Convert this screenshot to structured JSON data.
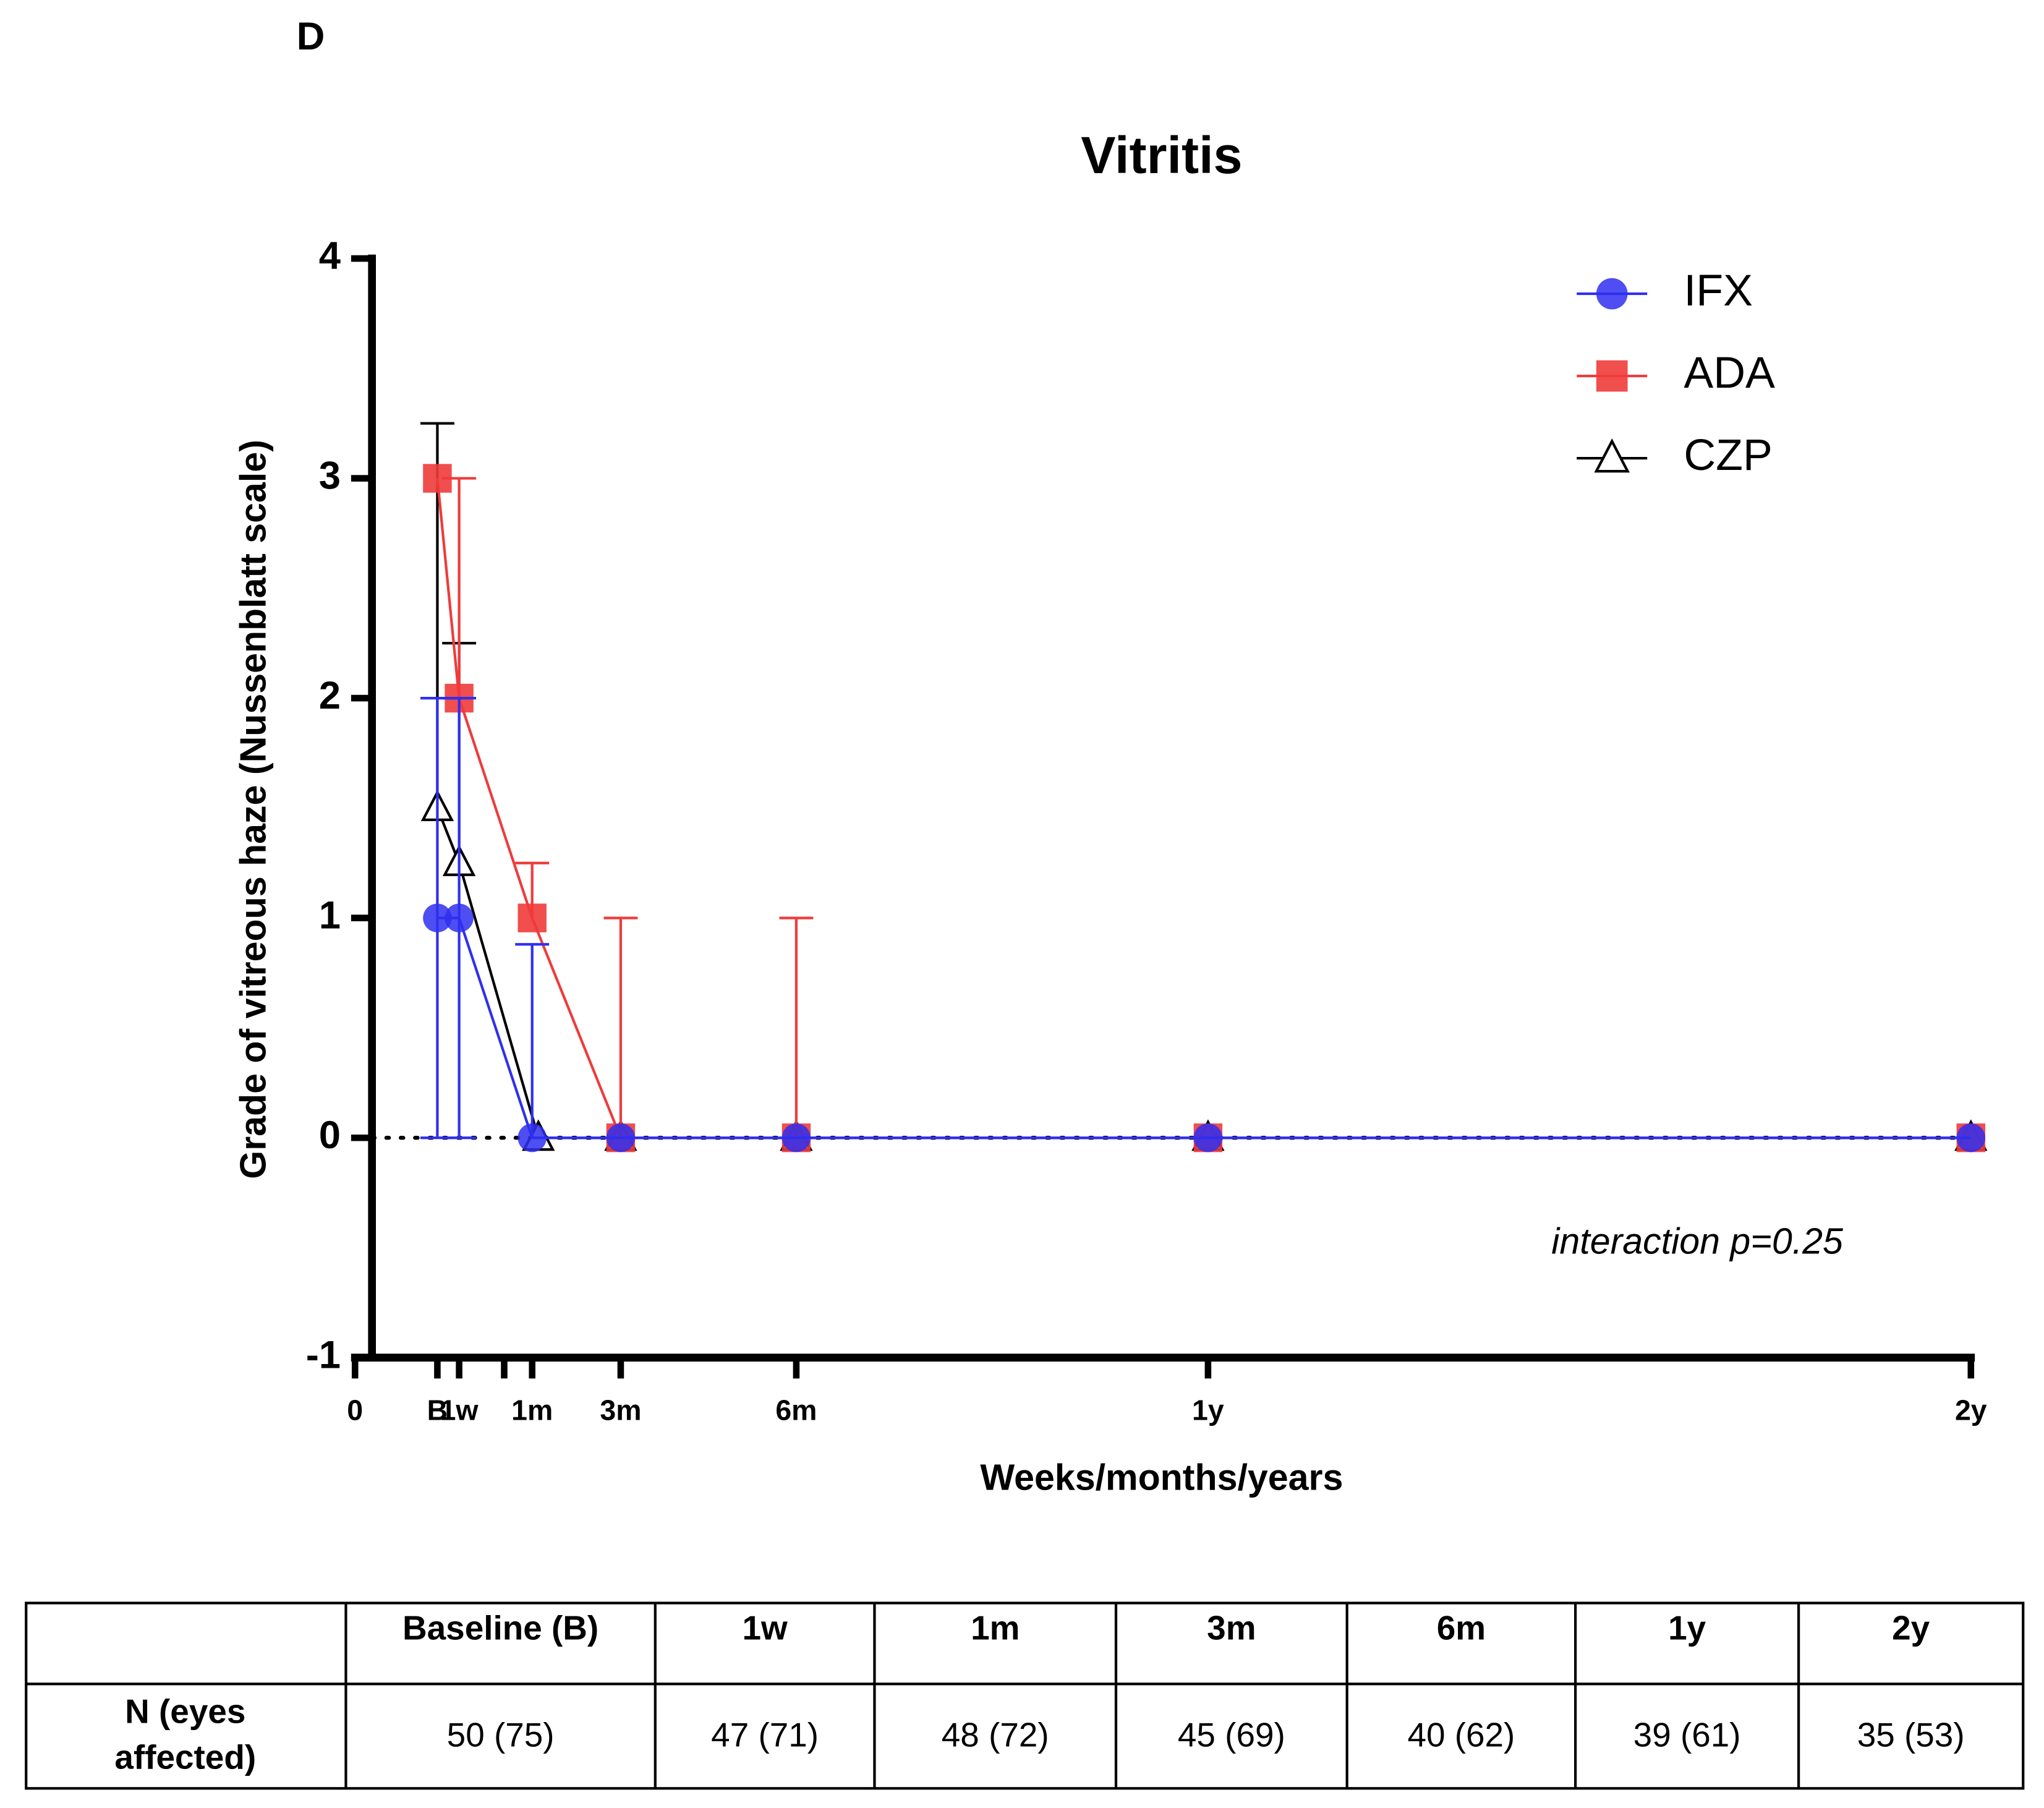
{
  "panel_label": "D",
  "chart_data": {
    "type": "line",
    "title": "Vitritis",
    "x_label": "Weeks/months/years",
    "y_label": "Grade of vitreous haze (Nussenblatt scale)",
    "annotation": "interaction p=0.25",
    "xlim": [
      0,
      104
    ],
    "ylim": [
      -1,
      4
    ],
    "yticks": [
      -1,
      0,
      1,
      2,
      3,
      4
    ],
    "xticks": [
      0,
      {
        "value": 5.3,
        "label": "B"
      },
      {
        "value": 6.7,
        "label": "1w"
      },
      {
        "value": 9.6,
        "label": null
      },
      {
        "value": 11.4,
        "label": "1m"
      },
      {
        "value": 17.1,
        "label": "3m"
      },
      {
        "value": 28.4,
        "label": "6m"
      },
      {
        "value": 54.9,
        "label": "1y"
      },
      {
        "value": 104,
        "label": "2y"
      }
    ],
    "legend": "top-right",
    "reference_line": 0,
    "series": [
      {
        "name": "CZP",
        "color": "#000000",
        "marker": "triangle-open",
        "x": [
          5.3,
          6.7,
          11.8,
          17.1,
          28.4,
          54.9,
          104
        ],
        "values": [
          1.5,
          1.25,
          0,
          0,
          0,
          0,
          0
        ],
        "error_upper": [
          1.75,
          1,
          null,
          null,
          null,
          null,
          null
        ],
        "error_lower": [
          null,
          null,
          null,
          null,
          null,
          null,
          null
        ]
      },
      {
        "name": "ADA",
        "color": "#ef3b3b",
        "marker": "square",
        "x": [
          5.3,
          6.7,
          11.4,
          17.1,
          28.4,
          54.9,
          104
        ],
        "values": [
          3,
          2,
          1,
          0,
          0,
          0,
          0
        ],
        "error_upper": [
          null,
          1,
          0.25,
          1,
          1,
          null,
          null
        ],
        "error_lower": [
          null,
          null,
          null,
          null,
          null,
          null,
          null
        ]
      },
      {
        "name": "IFX",
        "color": "#2f2ff0",
        "marker": "circle",
        "x": [
          5.3,
          6.7,
          11.4,
          17.1,
          28.4,
          54.9,
          104
        ],
        "values": [
          1,
          1,
          0,
          0,
          0,
          0,
          0
        ],
        "error_upper": [
          1,
          1,
          0.88,
          null,
          null,
          null,
          null
        ],
        "error_lower": [
          1,
          1,
          null,
          null,
          null,
          null,
          null
        ]
      }
    ]
  },
  "table": {
    "header": [
      "Baseline (B)",
      "1w",
      "1m",
      "3m",
      "6m",
      "1y",
      "2y"
    ],
    "row_label": [
      "N (eyes",
      "affected)"
    ],
    "values": [
      "50 (75)",
      "47 (71)",
      "48 (72)",
      "45 (69)",
      "40 (62)",
      "39 (61)",
      "35 (53)"
    ]
  }
}
